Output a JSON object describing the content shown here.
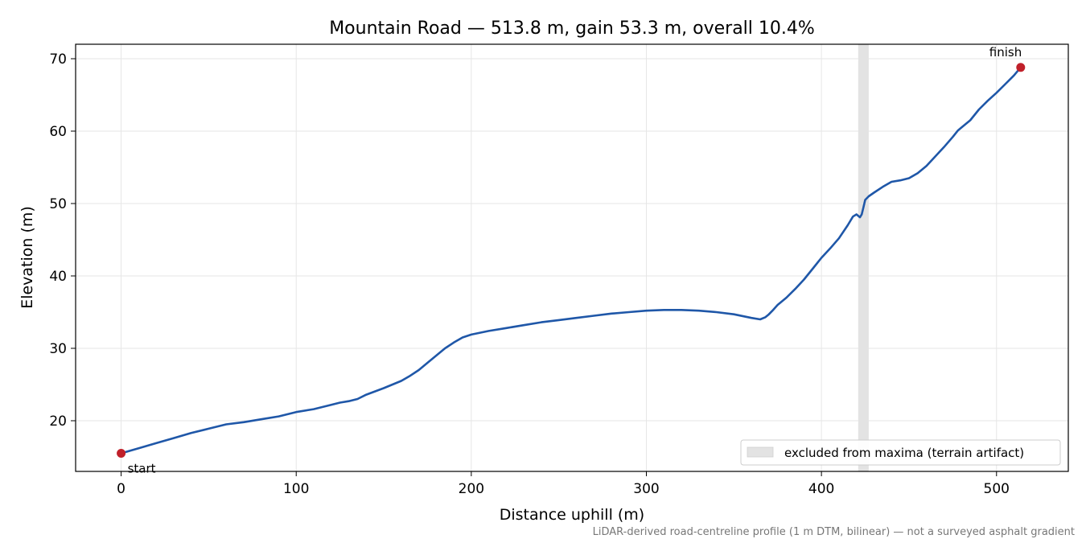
{
  "chart_data": {
    "type": "line",
    "title": "Mountain Road — 513.8 m, gain 53.3 m, overall 10.4%",
    "xlabel": "Distance uphill (m)",
    "ylabel": "Elevation (m)",
    "xlim": [
      -26,
      541
    ],
    "ylim": [
      13,
      72
    ],
    "xticks": [
      0,
      100,
      200,
      300,
      400,
      500
    ],
    "yticks": [
      20,
      30,
      40,
      50,
      60,
      70
    ],
    "grid": true,
    "legend_position": "lower-right",
    "colors": {
      "line": "#1f57a8",
      "marker": "#c0202a",
      "band": "#e3e3e3"
    },
    "excluded_band": {
      "x0": 421,
      "x1": 427,
      "label": "excluded from maxima (terrain artifact)"
    },
    "points": [
      {
        "label": "start",
        "x": 0,
        "y": 15.5
      },
      {
        "label": "finish",
        "x": 513.8,
        "y": 68.8
      }
    ],
    "series": [
      {
        "x": [
          0,
          10,
          20,
          30,
          40,
          50,
          60,
          70,
          80,
          90,
          100,
          110,
          120,
          125,
          130,
          135,
          140,
          150,
          160,
          165,
          170,
          175,
          180,
          185,
          190,
          195,
          200,
          210,
          220,
          230,
          240,
          250,
          260,
          270,
          280,
          290,
          300,
          310,
          320,
          330,
          340,
          350,
          360,
          365,
          368,
          370,
          372,
          375,
          380,
          385,
          390,
          395,
          400,
          405,
          410,
          415,
          418,
          420,
          421,
          422,
          423,
          424,
          425,
          427,
          430,
          435,
          440,
          445,
          450,
          455,
          460,
          465,
          470,
          475,
          478,
          480,
          485,
          490,
          495,
          500,
          505,
          510,
          513.8
        ],
        "y": [
          15.5,
          16.2,
          16.9,
          17.6,
          18.3,
          18.9,
          19.5,
          19.8,
          20.2,
          20.6,
          21.2,
          21.6,
          22.2,
          22.5,
          22.7,
          23.0,
          23.6,
          24.5,
          25.5,
          26.2,
          27.0,
          28.0,
          29.0,
          30.0,
          30.8,
          31.5,
          31.9,
          32.4,
          32.8,
          33.2,
          33.6,
          33.9,
          34.2,
          34.5,
          34.8,
          35.0,
          35.2,
          35.3,
          35.3,
          35.2,
          35.0,
          34.7,
          34.2,
          34.0,
          34.3,
          34.7,
          35.2,
          36.0,
          37.0,
          38.2,
          39.5,
          41.0,
          42.5,
          43.8,
          45.2,
          47.0,
          48.2,
          48.5,
          48.3,
          48.1,
          48.5,
          49.5,
          50.5,
          51.0,
          51.5,
          52.3,
          53.0,
          53.2,
          53.5,
          54.2,
          55.2,
          56.5,
          57.8,
          59.2,
          60.1,
          60.5,
          61.5,
          63.0,
          64.2,
          65.3,
          66.5,
          67.7,
          68.8
        ]
      }
    ]
  },
  "footnote": "LiDAR-derived road-centreline profile (1 m DTM, bilinear) — not a surveyed asphalt gradient"
}
